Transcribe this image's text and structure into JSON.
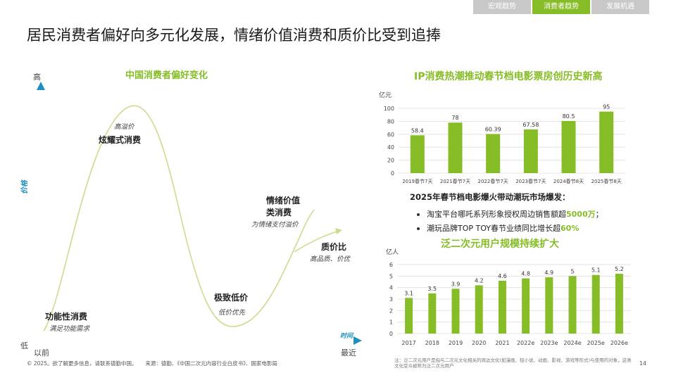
{
  "tabs": [
    {
      "label": "宏观趋势",
      "active": false
    },
    {
      "label": "消费者趋势",
      "active": true
    },
    {
      "label": "发展机遇",
      "active": false
    }
  ],
  "page_title": "居民消费者偏好向多元化发展，情绪价值消费和质价比受到追捧",
  "curve": {
    "title": "中国消费者偏好变化",
    "y_axis": {
      "label": "价格",
      "high": "高",
      "low": "低"
    },
    "x_axis": {
      "label": "时间",
      "start": "以前",
      "end": "最近"
    },
    "stages": [
      {
        "label": "功能性消费",
        "sub": "满足功能需求"
      },
      {
        "label": "炫耀式消费",
        "sub": "高溢价"
      },
      {
        "label": "极致低价",
        "sub": "低价优先"
      },
      {
        "label": "情绪价值类消费",
        "label_line1": "情绪价值",
        "label_line2": "类消费",
        "sub": "为情绪支付溢价"
      },
      {
        "label": "质价比",
        "sub": "高品质、价优"
      }
    ]
  },
  "box_office": {
    "title": "IP消费热潮推动春节档电影票房创历史新高",
    "unit": "亿元"
  },
  "market": {
    "heading": "2025年春节档电影爆火带动潮玩市场爆发：",
    "bullets": [
      {
        "pre": "淘宝平台哪吒系列形象授权周边销售额超",
        "hl": "5000万",
        "post": "；"
      },
      {
        "pre": "潮玩品牌TOP TOY春节业绩同比增长超",
        "hl": "60%",
        "post": ""
      }
    ]
  },
  "acg": {
    "title": "泛二次元用户规模持续扩大",
    "unit": "亿人"
  },
  "footer": {
    "copyright": "© 2025。欲了解更多信息，请联系德勤中国。",
    "source": "来源：德勤、《中国二次元内容行业白皮书》、国家电影局",
    "note": "注：泛二次元用户是指与二次元文化相关的周边文化(如漫画、轻小说、动画、影视、游戏等形式)与使用的对象，这类文化受众被称为泛二次元用户",
    "page": "14"
  },
  "colors": {
    "accent": "#86bc25",
    "arrow": "#2aa8a0",
    "grid": "#dddddd"
  },
  "chart_data": [
    {
      "type": "line",
      "title": "中国消费者偏好变化",
      "xlabel": "时间",
      "ylabel": "价格",
      "annotations": [
        "功能性消费",
        "炫耀式消费",
        "极致低价",
        "情绪价值类消费",
        "质价比"
      ]
    },
    {
      "type": "bar",
      "title": "IP消费热潮推动春节档电影票房创历史新高",
      "ylabel": "亿元",
      "categories": [
        "2019春节7天",
        "2021春节7天",
        "2022春节7天",
        "2023春节7天",
        "2024春节8天",
        "2025春节8天"
      ],
      "values": [
        58.4,
        78,
        60.39,
        67.58,
        80.5,
        95
      ],
      "value_labels": [
        "58.4",
        "78",
        "60.39",
        "67.58",
        "80.5",
        "95"
      ],
      "ylim": [
        0,
        100
      ],
      "yticks": [
        0,
        20,
        40,
        60,
        80,
        100
      ],
      "grid": true
    },
    {
      "type": "bar",
      "title": "泛二次元用户规模持续扩大",
      "ylabel": "亿人",
      "categories": [
        "2017",
        "2018",
        "2019",
        "2020",
        "2021",
        "2022e",
        "2023e",
        "2024e",
        "2025e",
        "2026e"
      ],
      "values": [
        3.1,
        3.5,
        3.9,
        4.2,
        4.6,
        4.8,
        4.9,
        5,
        5.1,
        5.2
      ],
      "value_labels": [
        "3.1",
        "3.5",
        "3.9",
        "4.2",
        "4.6",
        "4.8",
        "4.9",
        "5",
        "5.1",
        "5.2"
      ],
      "ylim": [
        0,
        6
      ],
      "yticks": [
        0,
        1,
        2,
        3,
        4,
        5,
        6
      ],
      "grid": true
    }
  ]
}
